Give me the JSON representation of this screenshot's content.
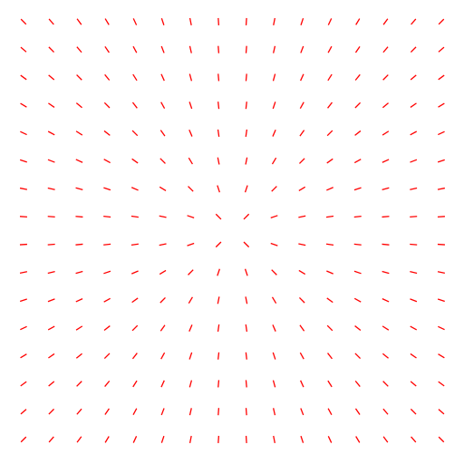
{
  "chart_data": {
    "type": "quiver",
    "x": [
      -7.5,
      -6.5,
      -5.5,
      -4.5,
      -3.5,
      -2.5,
      -1.5,
      -0.5,
      0.5,
      1.5,
      2.5,
      3.5,
      4.5,
      5.5,
      6.5,
      7.5
    ],
    "y": [
      -7.5,
      -6.5,
      -5.5,
      -4.5,
      -3.5,
      -2.5,
      -1.5,
      -0.5,
      0.5,
      1.5,
      2.5,
      3.5,
      4.5,
      5.5,
      6.5,
      7.5
    ],
    "color": "#ff0000",
    "xlim": [
      -8,
      8
    ],
    "ylim": [
      -8,
      8
    ]
  }
}
